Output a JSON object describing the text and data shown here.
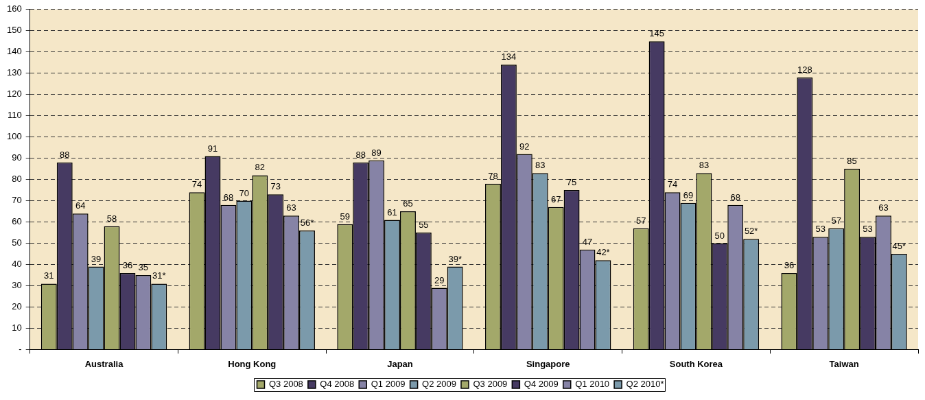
{
  "chart_data": {
    "type": "bar",
    "categories": [
      "Australia",
      "Hong Kong",
      "Japan",
      "Singapore",
      "South Korea",
      "Taiwan"
    ],
    "series": [
      {
        "name": "Q3 2008",
        "color": "#a3a86a",
        "values": [
          31,
          74,
          59,
          78,
          57,
          36
        ],
        "value_labels": [
          "31",
          "74",
          "59",
          "78",
          "57",
          "36"
        ]
      },
      {
        "name": "Q4 2008",
        "color": "#463a62",
        "values": [
          88,
          91,
          88,
          134,
          145,
          128
        ],
        "value_labels": [
          "88",
          "91",
          "88",
          "134",
          "145",
          "128"
        ]
      },
      {
        "name": "Q1 2009",
        "color": "#8683a6",
        "values": [
          64,
          68,
          89,
          92,
          74,
          53
        ],
        "value_labels": [
          "64",
          "68",
          "89",
          "92",
          "74",
          "53"
        ]
      },
      {
        "name": "Q2 2009",
        "color": "#7b9aab",
        "values": [
          39,
          70,
          61,
          83,
          69,
          57
        ],
        "value_labels": [
          "39",
          "70",
          "61",
          "83",
          "69",
          "57"
        ]
      },
      {
        "name": "Q3 2009",
        "color": "#a3a86a",
        "values": [
          58,
          82,
          65,
          67,
          83,
          85
        ],
        "value_labels": [
          "58",
          "82",
          "65",
          "67",
          "83",
          "85"
        ]
      },
      {
        "name": "Q4 2009",
        "color": "#463a62",
        "values": [
          36,
          73,
          55,
          75,
          50,
          53
        ],
        "value_labels": [
          "36",
          "73",
          "55",
          "75",
          "50",
          "53"
        ]
      },
      {
        "name": "Q1 2010",
        "color": "#8683a6",
        "values": [
          35,
          63,
          29,
          47,
          68,
          63
        ],
        "value_labels": [
          "35",
          "63",
          "29",
          "47",
          "68",
          "63"
        ]
      },
      {
        "name": "Q2 2010*",
        "color": "#7b9aab",
        "values": [
          31,
          56,
          39,
          42,
          52,
          45
        ],
        "value_labels": [
          "31*",
          "56*",
          "39*",
          "42*",
          "52*",
          "45*"
        ]
      }
    ],
    "ylim": [
      0,
      160
    ],
    "yticks": [
      {
        "value": 0,
        "label": "-"
      },
      10,
      20,
      30,
      40,
      50,
      60,
      70,
      80,
      90,
      100,
      110,
      120,
      130,
      140,
      150,
      160
    ],
    "grid": "y",
    "legend": "bottom"
  }
}
